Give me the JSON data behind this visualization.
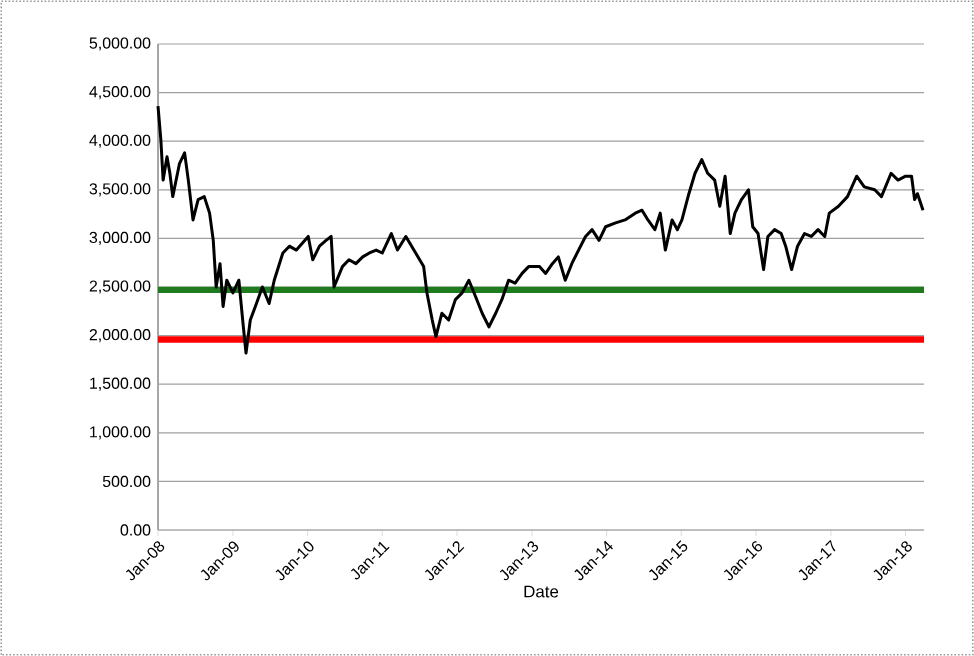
{
  "chart_data": {
    "type": "line",
    "xlabel": "Date",
    "xlim": [
      "2008-01-01",
      "2018-04-01"
    ],
    "xticks": [
      {
        "value": "2008-01-01",
        "label": "Jan-08"
      },
      {
        "value": "2009-01-01",
        "label": "Jan-09"
      },
      {
        "value": "2010-01-01",
        "label": "Jan-10"
      },
      {
        "value": "2011-01-01",
        "label": "Jan-11"
      },
      {
        "value": "2012-01-01",
        "label": "Jan-12"
      },
      {
        "value": "2013-01-01",
        "label": "Jan-13"
      },
      {
        "value": "2014-01-01",
        "label": "Jan-14"
      },
      {
        "value": "2015-01-01",
        "label": "Jan-15"
      },
      {
        "value": "2016-01-01",
        "label": "Jan-16"
      },
      {
        "value": "2017-01-01",
        "label": "Jan-17"
      },
      {
        "value": "2018-01-01",
        "label": "Jan-18"
      }
    ],
    "ylim": [
      0,
      5000
    ],
    "yticks": [
      {
        "value": 0,
        "label": "0.00"
      },
      {
        "value": 500,
        "label": "500.00"
      },
      {
        "value": 1000,
        "label": "1,000.00"
      },
      {
        "value": 1500,
        "label": "1,500.00"
      },
      {
        "value": 2000,
        "label": "2,000.00"
      },
      {
        "value": 2500,
        "label": "2,500.00"
      },
      {
        "value": 3000,
        "label": "3,000.00"
      },
      {
        "value": 3500,
        "label": "3,500.00"
      },
      {
        "value": 4000,
        "label": "4,000.00"
      },
      {
        "value": 4500,
        "label": "4,500.00"
      },
      {
        "value": 5000,
        "label": "5,000.00"
      }
    ],
    "grid": "y",
    "line_style": "solid",
    "series": [
      {
        "color": "#000000",
        "x": [
          "2008-01-01",
          "2008-01-15",
          "2008-01-26",
          "2008-02-14",
          "2008-02-28",
          "2008-03-13",
          "2008-04-15",
          "2008-05-10",
          "2008-05-28",
          "2008-06-20",
          "2008-07-15",
          "2008-08-14",
          "2008-09-09",
          "2008-09-27",
          "2008-10-11",
          "2008-10-30",
          "2008-11-14",
          "2008-12-02",
          "2009-01-01",
          "2009-01-30",
          "2009-02-21",
          "2009-03-06",
          "2009-03-27",
          "2009-04-26",
          "2009-05-25",
          "2009-06-27",
          "2009-07-22",
          "2009-09-02",
          "2009-10-04",
          "2009-11-07",
          "2010-01-04",
          "2010-01-26",
          "2010-02-28",
          "2010-04-01",
          "2010-04-26",
          "2010-05-10",
          "2010-06-20",
          "2010-07-22",
          "2010-08-25",
          "2010-09-27",
          "2010-10-30",
          "2010-12-02",
          "2011-01-01",
          "2011-02-14",
          "2011-03-16",
          "2011-04-26",
          "2011-06-13",
          "2011-07-22",
          "2011-08-07",
          "2011-09-02",
          "2011-09-20",
          "2011-10-19",
          "2011-11-21",
          "2011-12-24",
          "2012-01-26",
          "2012-02-28",
          "2012-04-01",
          "2012-05-03",
          "2012-06-05",
          "2012-07-08",
          "2012-08-07",
          "2012-09-09",
          "2012-10-11",
          "2012-11-14",
          "2012-12-16",
          "2013-02-07",
          "2013-03-09",
          "2013-04-11",
          "2013-05-10",
          "2013-06-13",
          "2013-07-15",
          "2013-08-17",
          "2013-09-20",
          "2013-10-22",
          "2013-11-25",
          "2013-12-27",
          "2014-02-14",
          "2014-04-01",
          "2014-05-21",
          "2014-06-23",
          "2014-07-22",
          "2014-08-25",
          "2014-09-20",
          "2014-10-15",
          "2014-11-17",
          "2014-12-13",
          "2015-01-04",
          "2015-02-07",
          "2015-03-09",
          "2015-04-11",
          "2015-05-10",
          "2015-06-13",
          "2015-07-08",
          "2015-08-03",
          "2015-08-28",
          "2015-09-20",
          "2015-10-22",
          "2015-11-25",
          "2015-12-16",
          "2016-01-11",
          "2016-02-07",
          "2016-02-28",
          "2016-04-01",
          "2016-05-03",
          "2016-05-25",
          "2016-06-23",
          "2016-07-22",
          "2016-08-25",
          "2016-09-27",
          "2016-10-30",
          "2016-12-02",
          "2016-12-24",
          "2017-02-07",
          "2017-03-23",
          "2017-05-07",
          "2017-06-13",
          "2017-08-03",
          "2017-09-05",
          "2017-10-22",
          "2017-11-25",
          "2018-01-01",
          "2018-01-30",
          "2018-02-14",
          "2018-02-28",
          "2018-03-27"
        ],
        "values": [
          4360,
          4010,
          3600,
          3840,
          3670,
          3430,
          3770,
          3880,
          3600,
          3190,
          3400,
          3430,
          3260,
          2980,
          2500,
          2740,
          2300,
          2570,
          2440,
          2570,
          2090,
          1820,
          2160,
          2330,
          2500,
          2330,
          2570,
          2850,
          2920,
          2880,
          3020,
          2780,
          2920,
          2980,
          3020,
          2500,
          2710,
          2780,
          2740,
          2810,
          2850,
          2880,
          2850,
          3050,
          2880,
          3020,
          2850,
          2710,
          2440,
          2160,
          1990,
          2230,
          2160,
          2370,
          2440,
          2570,
          2400,
          2230,
          2090,
          2230,
          2370,
          2570,
          2540,
          2640,
          2710,
          2710,
          2640,
          2740,
          2810,
          2570,
          2740,
          2880,
          3020,
          3090,
          2980,
          3120,
          3160,
          3190,
          3260,
          3290,
          3190,
          3090,
          3260,
          2880,
          3190,
          3090,
          3190,
          3460,
          3670,
          3810,
          3670,
          3600,
          3330,
          3640,
          3050,
          3260,
          3400,
          3500,
          3120,
          3050,
          2680,
          3020,
          3090,
          3050,
          2920,
          2680,
          2920,
          3050,
          3020,
          3090,
          3020,
          3260,
          3330,
          3430,
          3640,
          3530,
          3500,
          3430,
          3670,
          3600,
          3640,
          3640,
          3400,
          3460,
          3290
        ]
      }
    ],
    "ref_lines": [
      {
        "axis": "y",
        "value": 2470,
        "color": "#1e7b1e"
      },
      {
        "axis": "y",
        "value": 1960,
        "color": "#ff0000"
      }
    ]
  }
}
